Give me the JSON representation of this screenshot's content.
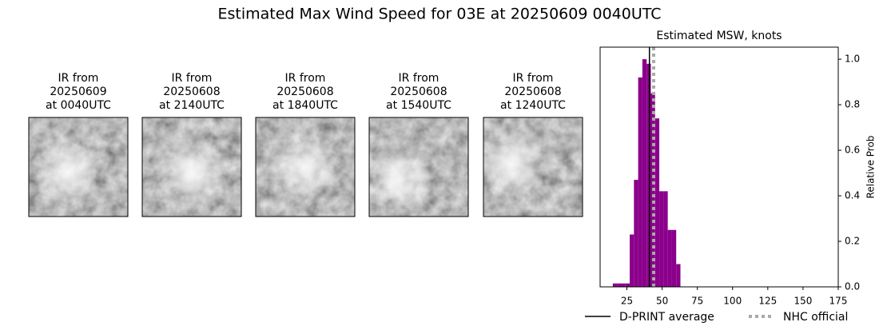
{
  "title": "Estimated Max Wind Speed for 03E at 20250609 0040UTC",
  "panels": [
    {
      "lines": [
        "IR from",
        "20250609",
        "at 0040UTC"
      ]
    },
    {
      "lines": [
        "IR from",
        "20250608",
        "at 2140UTC"
      ]
    },
    {
      "lines": [
        "IR from",
        "20250608",
        "at 1840UTC"
      ]
    },
    {
      "lines": [
        "IR from",
        "20250608",
        "at 1540UTC"
      ]
    },
    {
      "lines": [
        "IR from",
        "20250608",
        "at 1240UTC"
      ]
    }
  ],
  "chart_data": {
    "type": "histogram",
    "title": "Estimated MSW, knots",
    "y_label": "Relative Prob",
    "color": "#8b008b",
    "bins": [
      15,
      18,
      21,
      24,
      27,
      30,
      33,
      36,
      39,
      42,
      45,
      48,
      51,
      54,
      57,
      60,
      63
    ],
    "values": [
      0.015,
      0.015,
      0.015,
      0.015,
      0.23,
      0.47,
      0.92,
      1.0,
      0.98,
      0.85,
      0.74,
      0.42,
      0.42,
      0.25,
      0.25,
      0.1
    ],
    "xlim": [
      6,
      175
    ],
    "xticks": [
      25,
      50,
      75,
      100,
      125,
      150,
      175
    ],
    "ylim": [
      0,
      1.053
    ],
    "yticks": [
      {
        "value": 0,
        "label": "0.0"
      },
      {
        "value": 0.2,
        "label": "0.2"
      },
      {
        "value": 0.4,
        "label": "0.4"
      },
      {
        "value": 0.6,
        "label": "0.6"
      },
      {
        "value": 0.8,
        "label": "0.8"
      },
      {
        "value": 1.0,
        "label": "1.0"
      }
    ],
    "reference_lines": [
      {
        "name": "D-PRINT average",
        "value": 41,
        "color": "#000000",
        "style": "solid"
      },
      {
        "name": "NHC official",
        "value": 44,
        "color": "#aaaaaa",
        "style": "dotted"
      }
    ]
  }
}
